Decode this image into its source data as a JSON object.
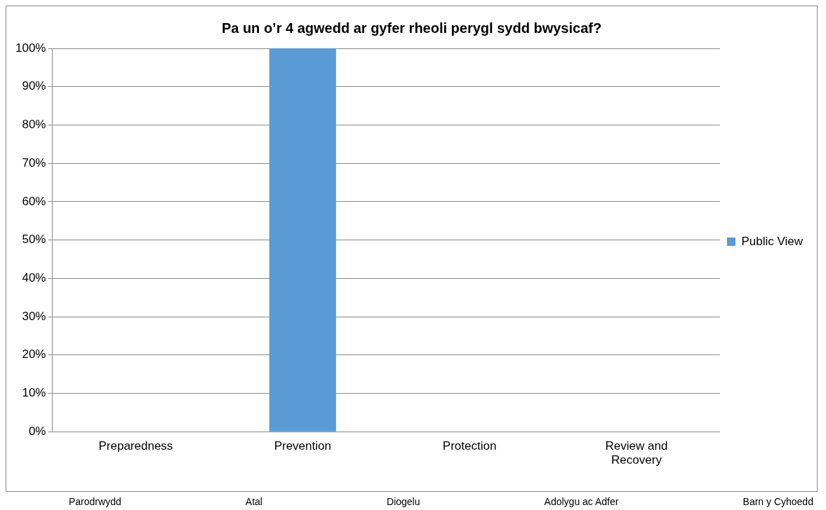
{
  "chart_data": {
    "type": "bar",
    "title": "Pa un o’r 4 agwedd ar gyfer rheoli perygl sydd bwysicaf?",
    "categories": [
      "Preparedness",
      "Prevention",
      "Protection",
      "Review and Recovery"
    ],
    "series": [
      {
        "name": "Public View",
        "color": "#5b9bd5",
        "values": [
          0,
          100,
          0,
          0
        ]
      }
    ],
    "ylim": [
      0,
      100
    ],
    "yticks": [
      {
        "value": 0,
        "label": "0%"
      },
      {
        "value": 10,
        "label": "10%"
      },
      {
        "value": 20,
        "label": "20%"
      },
      {
        "value": 30,
        "label": "30%"
      },
      {
        "value": 40,
        "label": "40%"
      },
      {
        "value": 50,
        "label": "50%"
      },
      {
        "value": 60,
        "label": "60%"
      },
      {
        "value": 70,
        "label": "70%"
      },
      {
        "value": 80,
        "label": "80%"
      },
      {
        "value": 90,
        "label": "90%"
      },
      {
        "value": 100,
        "label": "100%"
      }
    ],
    "grid": "y",
    "legend": "right",
    "annotations": [
      "Parodrwydd",
      "Atal",
      "Diogelu",
      "Adolygu ac Adfer",
      "Barn y Cyhoedd"
    ]
  }
}
